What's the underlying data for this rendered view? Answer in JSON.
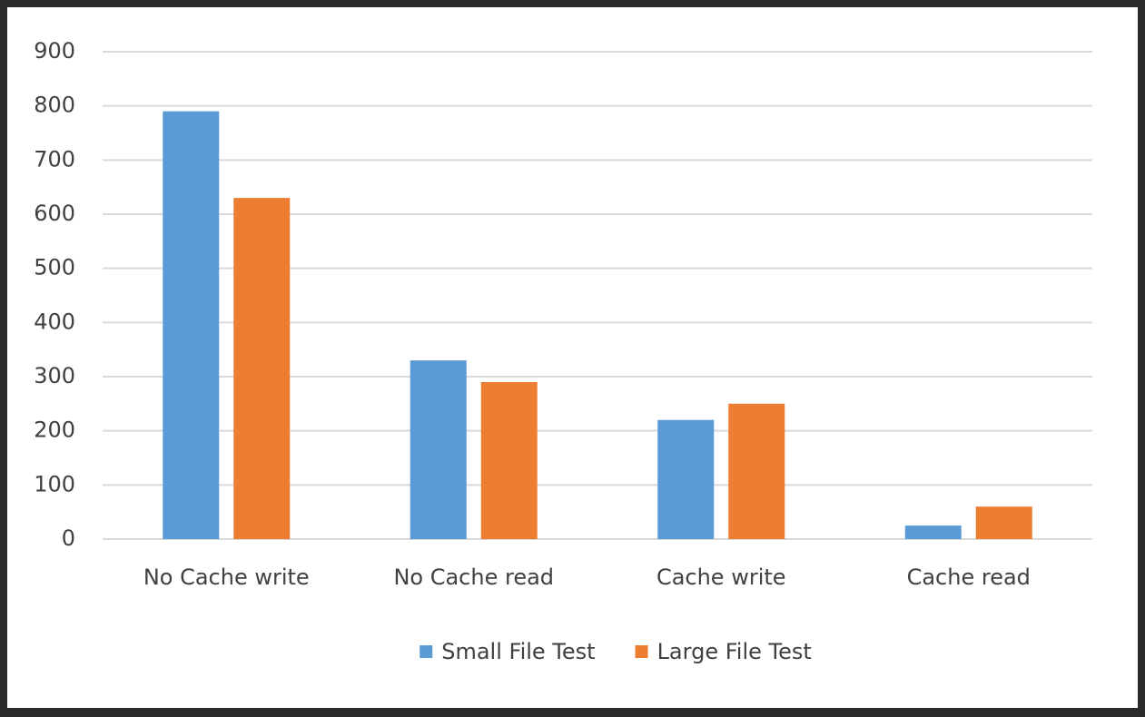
{
  "chart_data": {
    "type": "bar",
    "categories": [
      "No Cache write",
      "No Cache read",
      "Cache write",
      "Cache read"
    ],
    "series": [
      {
        "name": "Small File Test",
        "color": "#5b9bd5",
        "values": [
          790,
          330,
          220,
          25
        ]
      },
      {
        "name": "Large File Test",
        "color": "#ed7d31",
        "values": [
          630,
          290,
          250,
          60
        ]
      }
    ],
    "ylim": [
      0,
      900
    ],
    "yticks": [
      0,
      100,
      200,
      300,
      400,
      500,
      600,
      700,
      800,
      900
    ],
    "grid": true,
    "legend": "bottom"
  }
}
